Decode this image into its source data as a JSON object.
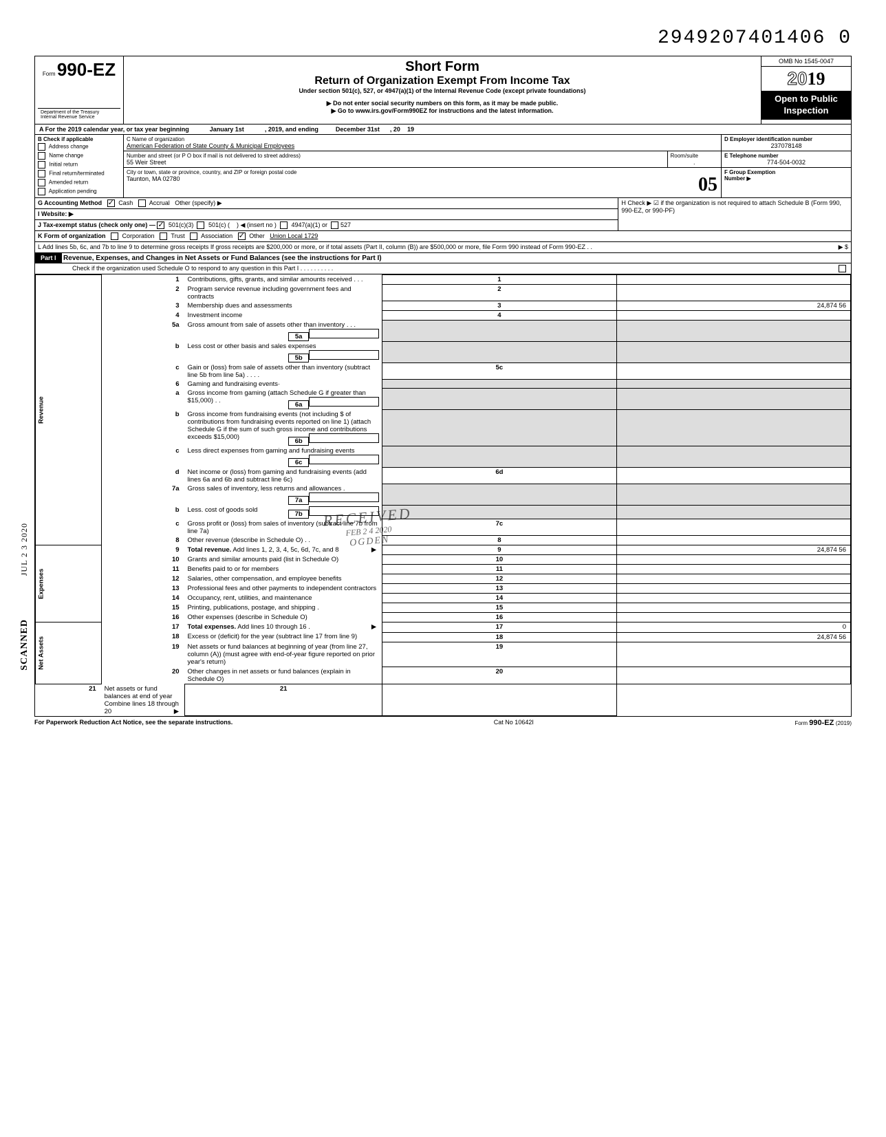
{
  "top_number": "2949207401406 0",
  "omb": "OMB No 1545-0047",
  "form_prefix": "Form",
  "form_number": "990-EZ",
  "title_short": "Short Form",
  "title_main": "Return of Organization Exempt From Income Tax",
  "subtitle": "Under section 501(c), 527, or 4947(a)(1) of the Internal Revenue Code (except private foundations)",
  "notice1": "▶ Do not enter social security numbers on this form, as it may be made public.",
  "notice2": "▶ Go to www.irs.gov/Form990EZ for instructions and the latest information.",
  "dept": "Department of the Treasury\nInternal Revenue Service",
  "year": "2019",
  "year_outline": "20",
  "public1": "Open to Public",
  "public2": "Inspection",
  "row_a": {
    "prefix": "A  For the 2019 calendar year, or tax year beginning",
    "start": "January 1st",
    "mid": ", 2019, and ending",
    "end": "December 31st",
    "suffix": ", 20",
    "yy": "19"
  },
  "section_b": {
    "label": "B  Check if applicable",
    "items": [
      "Address change",
      "Name change",
      "Initial return",
      "Final return/terminated",
      "Amended return",
      "Application pending"
    ]
  },
  "section_c": {
    "label": "C  Name of organization",
    "name": "American Federation of State County & Municipal Employees",
    "addr_label": "Number and street (or P O  box if mail is not delivered to street address)",
    "addr": "55 Weir Street",
    "room_label": "Room/suite",
    "city_label": "City or town, state or province, country, and ZIP or foreign postal code",
    "city": "Taunton, MA 02780"
  },
  "section_d": {
    "label": "D Employer identification number",
    "value": "237078148"
  },
  "section_e": {
    "label": "E Telephone number",
    "value": "774-504-0032"
  },
  "section_f": {
    "label": "F Group Exemption\n   Number ▶"
  },
  "section_g": {
    "label": "G  Accounting Method",
    "cash": "Cash",
    "accrual": "Accrual",
    "other": "Other (specify) ▶"
  },
  "section_h": "H  Check ▶ ☑ if the organization is not required to attach Schedule B (Form 990, 990-EZ, or 990-PF)",
  "section_i": "I   Website: ▶",
  "section_j": {
    "prefix": "J  Tax-exempt status (check only one) —",
    "opt1": "501(c)(3)",
    "opt2": "501(c) (",
    "opt2b": ") ◀ (insert no )",
    "opt3": "4947(a)(1) or",
    "opt4": "527"
  },
  "section_k": {
    "prefix": "K  Form of organization",
    "corp": "Corporation",
    "trust": "Trust",
    "assoc": "Association",
    "other": "Other",
    "other_val": "Union Local 1729"
  },
  "section_l": "L  Add lines 5b, 6c, and 7b to line 9 to determine gross receipts  If gross receipts are $200,000 or more, or if total assets (Part II, column (B)) are $500,000 or more, file Form 990 instead of Form 990-EZ   .    .",
  "l_amount_label": "▶     $",
  "stamp_big": "05",
  "part1": {
    "header": "Part I",
    "title": "Revenue, Expenses, and Changes in Net Assets or Fund Balances (see the instructions for Part I)",
    "check": "Check if the organization used Schedule O to respond to any question in this Part I  .   .   .   .   .   .   .   .   .   ."
  },
  "sections": {
    "revenue": "Revenue",
    "expenses": "Expenses",
    "netassets": "Net Assets"
  },
  "stamps": {
    "scanned": "SCANNED",
    "date": "JUL 2 3 2020",
    "received": "RECEIVED",
    "feb": "FEB 2 4 2020",
    "ogden": "OGDEN"
  },
  "lines": [
    {
      "n": "1",
      "t": "Contributions, gifts, grants, and similar amounts received .   .   .",
      "box": "1",
      "amt": ""
    },
    {
      "n": "2",
      "t": "Program service revenue including government fees and contracts",
      "box": "2",
      "amt": ""
    },
    {
      "n": "3",
      "t": "Membership dues and assessments",
      "box": "3",
      "amt": "24,874 56"
    },
    {
      "n": "4",
      "t": "Investment income",
      "box": "4",
      "amt": ""
    },
    {
      "n": "5a",
      "t": "Gross amount from sale of assets other than inventory   .   .   .",
      "sub": "5a"
    },
    {
      "n": "b",
      "t": "Less  cost or other basis and sales expenses",
      "sub": "5b"
    },
    {
      "n": "c",
      "t": "Gain or (loss) from sale of assets other than inventory (subtract line 5b from line 5a)  .   .   .   .",
      "box": "5c",
      "amt": ""
    },
    {
      "n": "6",
      "t": "Gaming and fundraising events·"
    },
    {
      "n": "a",
      "t": "Gross income from gaming (attach Schedule G if greater than $15,000)  .   .",
      "sub": "6a"
    },
    {
      "n": "b",
      "t": "Gross income from fundraising events (not including  $                                 of contributions from fundraising events reported on line 1) (attach Schedule G if the sum of such gross income and contributions exceeds $15,000)",
      "sub": "6b"
    },
    {
      "n": "c",
      "t": "Less  direct expenses from gaming and fundraising events",
      "sub": "6c"
    },
    {
      "n": "d",
      "t": "Net income or (loss) from gaming and fundraising events (add lines 6a and 6b and subtract line 6c)",
      "box": "6d",
      "amt": ""
    },
    {
      "n": "7a",
      "t": "Gross sales of inventory, less returns and allowances  .",
      "sub": "7a"
    },
    {
      "n": "b",
      "t": "Less. cost of goods sold",
      "sub": "7b"
    },
    {
      "n": "c",
      "t": "Gross profit or (loss) from sales of inventory (subtract line 7b from line 7a)",
      "box": "7c",
      "amt": ""
    },
    {
      "n": "8",
      "t": "Other revenue (describe in Schedule O) .   .",
      "box": "8",
      "amt": ""
    },
    {
      "n": "9",
      "t": "Total revenue. Add lines 1, 2, 3, 4, 5c, 6d, 7c, and 8",
      "box": "9",
      "amt": "24,874 56",
      "arrow": true,
      "bold": true
    },
    {
      "n": "10",
      "t": "Grants and similar amounts paid (list in Schedule O)",
      "box": "10",
      "amt": ""
    },
    {
      "n": "11",
      "t": "Benefits paid to or for members",
      "box": "11",
      "amt": ""
    },
    {
      "n": "12",
      "t": "Salaries, other compensation, and employee benefits",
      "box": "12",
      "amt": ""
    },
    {
      "n": "13",
      "t": "Professional fees and other payments to independent contractors",
      "box": "13",
      "amt": ""
    },
    {
      "n": "14",
      "t": "Occupancy, rent, utilities, and maintenance",
      "box": "14",
      "amt": ""
    },
    {
      "n": "15",
      "t": "Printing, publications, postage, and shipping .",
      "box": "15",
      "amt": ""
    },
    {
      "n": "16",
      "t": "Other expenses (describe in Schedule O)",
      "box": "16",
      "amt": ""
    },
    {
      "n": "17",
      "t": "Total expenses. Add lines 10 through 16  .",
      "box": "17",
      "amt": "0",
      "arrow": true,
      "bold": true
    },
    {
      "n": "18",
      "t": "Excess or (deficit) for the year (subtract line 17 from line 9)",
      "box": "18",
      "amt": "24,874 56"
    },
    {
      "n": "19",
      "t": "Net assets or fund balances at beginning of year (from line 27, column (A)) (must agree with end-of-year figure reported on prior year's return)",
      "box": "19",
      "amt": ""
    },
    {
      "n": "20",
      "t": "Other changes in net assets or fund balances (explain in Schedule O)",
      "box": "20",
      "amt": ""
    },
    {
      "n": "21",
      "t": "Net assets or fund balances at end of year  Combine lines 18 through 20",
      "box": "21",
      "amt": "",
      "arrow": true
    }
  ],
  "footer": {
    "left": "For Paperwork Reduction Act Notice, see the separate instructions.",
    "mid": "Cat  No  10642I",
    "right": "Form 990-EZ (2019)"
  }
}
